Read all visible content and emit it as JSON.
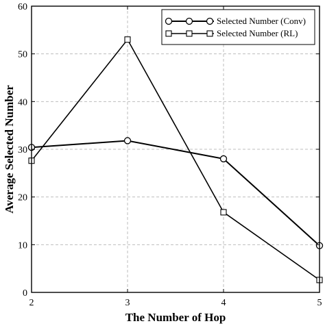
{
  "chart_data": {
    "type": "line",
    "title": "",
    "xlabel": "The Number of Hop",
    "ylabel": "Average Selected Number",
    "x": [
      2,
      3,
      4,
      5
    ],
    "xlim": [
      2,
      5
    ],
    "ylim": [
      0,
      60
    ],
    "x_ticks": [
      "2",
      "3",
      "4",
      "5"
    ],
    "y_ticks": [
      "0",
      "10",
      "20",
      "30",
      "40",
      "50",
      "60"
    ],
    "grid": true,
    "legend_position": "top-right",
    "series": [
      {
        "name": "Selected Number (Conv)",
        "marker": "circle",
        "values": [
          30.4,
          31.8,
          28.0,
          9.8
        ]
      },
      {
        "name": "Selected Number (RL)",
        "marker": "square",
        "values": [
          27.6,
          53.0,
          16.8,
          2.6
        ]
      }
    ],
    "colors": {
      "line": "#000000",
      "grid": "#bdbdbd",
      "background": "#ffffff"
    }
  }
}
